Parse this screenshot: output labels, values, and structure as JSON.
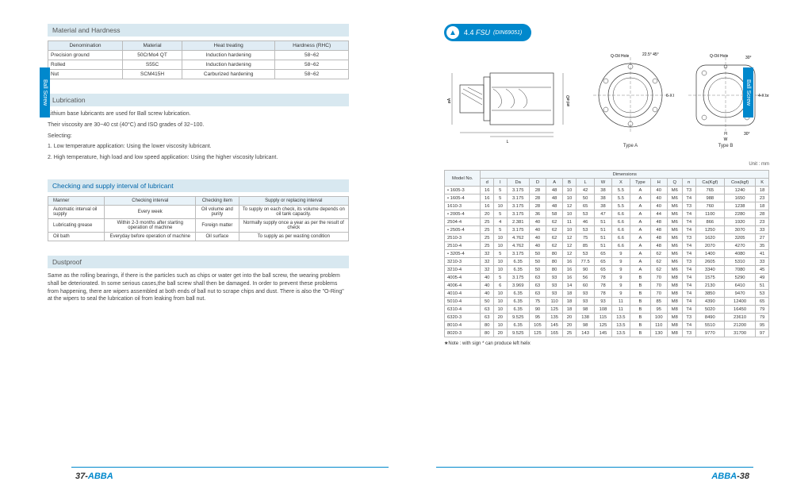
{
  "sideTabLeft": "Ball Screw",
  "sideTabRight": "Ball Screw",
  "left": {
    "materialTitle": "Material and Hardness",
    "materialHeaders": [
      "Denomination",
      "Material",
      "Heat treating",
      "Hardness (RHC)"
    ],
    "materialRows": [
      [
        "Precision ground",
        "50CrMo4 QT",
        "Induction hardening",
        "58~62"
      ],
      [
        "Rolled",
        "S55C",
        "Induction hardening",
        "58~62"
      ],
      [
        "Nut",
        "SCM415H",
        "Carburized hardening",
        "58~62"
      ]
    ],
    "lubTitle": "Lubrication",
    "lubBody": [
      "Lithium base lubricants are used for Ball screw lubrication.",
      "Their viscosity are 30~40 cst (40°C) and ISO grades of 32~100.",
      "Selecting:",
      "1. Low temperature application: Using the lower viscosity lubricant.",
      "2. High temperature, high load and low speed application: Using the higher viscosity lubricant."
    ],
    "checkTitle": "Checking and supply interval of lubricant",
    "checkHeaders": [
      "Manner",
      "Checking interval",
      "Checking item",
      "Supply or replacing interval"
    ],
    "checkRows": [
      [
        "Automatic interval oil supply",
        "Every week",
        "Oil volume and purity",
        "To supply on each check, its volume depends on oil tank capacity."
      ],
      [
        "Lubricating grease",
        "Within 2-3 months after starting operation of machine",
        "Foreign matter",
        "Normally supply once a year as per the result of check"
      ],
      [
        "Oil bath",
        "Everyday before operation of machine",
        "Oil surface",
        "To supply as per wasting condition"
      ]
    ],
    "dustTitle": "Dustproof",
    "dustBody": "Same as the rolling bearings, if there is the particles such as chips or water get into the ball screw, the wearing problem shall be deteriorated. In some serious cases,the ball screw shall then be damaged. In order to prevent these problems from happening, there are wipers assembled at both ends of ball nut to scrape chips and dust. There is also the \"O-Ring\" at the wipers to seal the lubrication oil from leaking from ball nut."
  },
  "right": {
    "headerNum": "4.4",
    "headerTitle": "FSU",
    "headerSub": "(DIN69051)",
    "typeA": "Type A",
    "typeB": "Type B",
    "unitLabel": "Unit : mm",
    "dimGroupHeader": "Dimensions",
    "modelHeader": "Model No.",
    "dimHeaders": [
      "d",
      "I",
      "Da",
      "D",
      "A",
      "B",
      "L",
      "W",
      "X",
      "Type",
      "H",
      "Q",
      "n",
      "Ca(Kgf)",
      "Coa(kgf)",
      "K"
    ],
    "dimRows": [
      [
        "• 1605-3",
        "16",
        "5",
        "3.175",
        "28",
        "48",
        "10",
        "42",
        "38",
        "5.5",
        "A",
        "40",
        "M6",
        "T3",
        "765",
        "1240",
        "18"
      ],
      [
        "• 1605-4",
        "16",
        "5",
        "3.175",
        "28",
        "48",
        "10",
        "50",
        "38",
        "5.5",
        "A",
        "40",
        "M6",
        "T4",
        "988",
        "1650",
        "23"
      ],
      [
        "1610-3",
        "16",
        "10",
        "3.175",
        "28",
        "48",
        "12",
        "65",
        "38",
        "5.5",
        "A",
        "40",
        "M6",
        "T3",
        "760",
        "1238",
        "18"
      ],
      [
        "• 2005-4",
        "20",
        "5",
        "3.175",
        "36",
        "58",
        "10",
        "53",
        "47",
        "6.6",
        "A",
        "44",
        "M6",
        "T4",
        "1100",
        "2280",
        "28"
      ],
      [
        "2504-4",
        "25",
        "4",
        "2.381",
        "40",
        "62",
        "11",
        "46",
        "51",
        "6.6",
        "A",
        "48",
        "M6",
        "T4",
        "866",
        "1920",
        "23"
      ],
      [
        "• 2505-4",
        "25",
        "5",
        "3.175",
        "40",
        "62",
        "10",
        "53",
        "51",
        "6.6",
        "A",
        "48",
        "M6",
        "T4",
        "1250",
        "3070",
        "33"
      ],
      [
        "2510-3",
        "25",
        "10",
        "4.762",
        "40",
        "62",
        "12",
        "75",
        "51",
        "6.6",
        "A",
        "48",
        "M6",
        "T3",
        "1620",
        "3205",
        "27"
      ],
      [
        "2510-4",
        "25",
        "10",
        "4.762",
        "40",
        "62",
        "12",
        "85",
        "51",
        "6.6",
        "A",
        "48",
        "M6",
        "T4",
        "2070",
        "4270",
        "35"
      ],
      [
        "• 3205-4",
        "32",
        "5",
        "3.175",
        "50",
        "80",
        "12",
        "53",
        "65",
        "9",
        "A",
        "62",
        "M6",
        "T4",
        "1400",
        "4080",
        "41"
      ],
      [
        "3210-3",
        "32",
        "10",
        "6.35",
        "50",
        "80",
        "16",
        "77.5",
        "65",
        "9",
        "A",
        "62",
        "M6",
        "T3",
        "2605",
        "5310",
        "33"
      ],
      [
        "3210-4",
        "32",
        "10",
        "6.35",
        "50",
        "80",
        "16",
        "90",
        "65",
        "9",
        "A",
        "62",
        "M6",
        "T4",
        "3340",
        "7080",
        "45"
      ],
      [
        "4005-4",
        "40",
        "5",
        "3.175",
        "63",
        "93",
        "16",
        "56",
        "78",
        "9",
        "B",
        "70",
        "M8",
        "T4",
        "1575",
        "5290",
        "49"
      ],
      [
        "4006-4",
        "40",
        "6",
        "3.969",
        "63",
        "93",
        "14",
        "60",
        "78",
        "9",
        "B",
        "70",
        "M8",
        "T4",
        "2130",
        "6410",
        "51"
      ],
      [
        "4010-4",
        "40",
        "10",
        "6.35",
        "63",
        "93",
        "18",
        "93",
        "78",
        "9",
        "B",
        "70",
        "M8",
        "T4",
        "3850",
        "9470",
        "53"
      ],
      [
        "5010-4",
        "50",
        "10",
        "6.35",
        "75",
        "110",
        "18",
        "93",
        "93",
        "11",
        "B",
        "85",
        "M8",
        "T4",
        "4390",
        "12400",
        "65"
      ],
      [
        "6310-4",
        "63",
        "10",
        "6.35",
        "90",
        "125",
        "18",
        "98",
        "108",
        "11",
        "B",
        "95",
        "M8",
        "T4",
        "5020",
        "16450",
        "79"
      ],
      [
        "6320-3",
        "63",
        "20",
        "9.525",
        "95",
        "135",
        "20",
        "138",
        "115",
        "13.5",
        "B",
        "100",
        "M8",
        "T3",
        "8490",
        "23610",
        "79"
      ],
      [
        "8010-4",
        "80",
        "10",
        "6.35",
        "105",
        "145",
        "20",
        "98",
        "125",
        "13.5",
        "B",
        "110",
        "M8",
        "T4",
        "5510",
        "21200",
        "95"
      ],
      [
        "8020-3",
        "80",
        "20",
        "9.525",
        "125",
        "165",
        "25",
        "143",
        "145",
        "13.5",
        "B",
        "130",
        "M8",
        "T3",
        "9770",
        "31700",
        "97"
      ]
    ],
    "note": "★Note : with sign * can produce left helix"
  },
  "footerLeftNum": "37-",
  "footerLeftBrand": "ABBA",
  "footerRightBrand": "ABBA",
  "footerRightNum": "-38"
}
